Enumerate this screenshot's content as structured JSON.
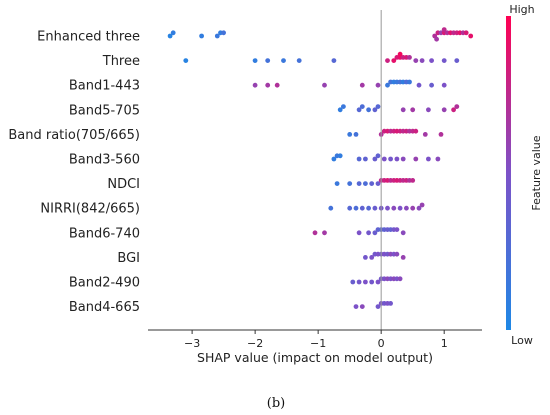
{
  "chart_data": {
    "type": "scatter",
    "subtype": "shap-beeswarm",
    "xlabel": "SHAP value (impact on model output)",
    "xlim": [
      -3.7,
      1.6
    ],
    "xticks": [
      -3,
      -2,
      -1,
      0,
      1
    ],
    "xtick_labels": [
      "−3",
      "−2",
      "−1",
      "0",
      "1"
    ],
    "colorbar": {
      "label": "Feature value",
      "high_label": "High",
      "low_label": "Low",
      "low_color": "#1e88e5",
      "high_color": "#ff0052"
    },
    "features": [
      {
        "name": "Enhanced three",
        "points": [
          {
            "x": -3.35,
            "v": 0.05
          },
          {
            "x": -3.3,
            "v": 0.1
          },
          {
            "x": -2.85,
            "v": 0.1
          },
          {
            "x": -2.6,
            "v": 0.15
          },
          {
            "x": -2.55,
            "v": 0.1
          },
          {
            "x": -2.5,
            "v": 0.2
          },
          {
            "x": 0.85,
            "v": 0.7
          },
          {
            "x": 0.9,
            "v": 0.8
          },
          {
            "x": 0.95,
            "v": 0.6
          },
          {
            "x": 1.0,
            "v": 0.85
          },
          {
            "x": 1.05,
            "v": 0.7
          },
          {
            "x": 1.1,
            "v": 0.9
          },
          {
            "x": 1.15,
            "v": 0.75
          },
          {
            "x": 1.2,
            "v": 0.8
          },
          {
            "x": 1.25,
            "v": 0.9
          },
          {
            "x": 1.3,
            "v": 0.7
          },
          {
            "x": 1.35,
            "v": 0.85
          },
          {
            "x": 1.42,
            "v": 0.9
          },
          {
            "x": 0.88,
            "v": 0.65
          },
          {
            "x": 1.0,
            "v": 0.75
          }
        ]
      },
      {
        "name": "Three",
        "points": [
          {
            "x": -3.1,
            "v": 0.05
          },
          {
            "x": -2.0,
            "v": 0.1
          },
          {
            "x": -1.8,
            "v": 0.2
          },
          {
            "x": -1.55,
            "v": 0.15
          },
          {
            "x": -1.3,
            "v": 0.2
          },
          {
            "x": -0.75,
            "v": 0.3
          },
          {
            "x": 0.1,
            "v": 0.8
          },
          {
            "x": 0.2,
            "v": 0.9
          },
          {
            "x": 0.25,
            "v": 0.85
          },
          {
            "x": 0.3,
            "v": 0.9
          },
          {
            "x": 0.35,
            "v": 0.8
          },
          {
            "x": 0.4,
            "v": 0.85
          },
          {
            "x": 0.45,
            "v": 0.7
          },
          {
            "x": 0.55,
            "v": 0.6
          },
          {
            "x": 0.65,
            "v": 0.55
          },
          {
            "x": 0.8,
            "v": 0.5
          },
          {
            "x": 1.0,
            "v": 0.45
          },
          {
            "x": 1.2,
            "v": 0.4
          },
          {
            "x": 0.3,
            "v": 0.95
          }
        ]
      },
      {
        "name": "Band1-443",
        "points": [
          {
            "x": -2.0,
            "v": 0.6
          },
          {
            "x": -1.8,
            "v": 0.65
          },
          {
            "x": -1.65,
            "v": 0.7
          },
          {
            "x": -0.9,
            "v": 0.6
          },
          {
            "x": -0.3,
            "v": 0.65
          },
          {
            "x": -0.05,
            "v": 0.6
          },
          {
            "x": 0.1,
            "v": 0.15
          },
          {
            "x": 0.15,
            "v": 0.2
          },
          {
            "x": 0.2,
            "v": 0.1
          },
          {
            "x": 0.25,
            "v": 0.15
          },
          {
            "x": 0.3,
            "v": 0.2
          },
          {
            "x": 0.35,
            "v": 0.1
          },
          {
            "x": 0.4,
            "v": 0.25
          },
          {
            "x": 0.45,
            "v": 0.15
          },
          {
            "x": 0.6,
            "v": 0.45
          },
          {
            "x": 0.8,
            "v": 0.4
          },
          {
            "x": 1.0,
            "v": 0.5
          }
        ]
      },
      {
        "name": "Band5-705",
        "points": [
          {
            "x": -0.65,
            "v": 0.1
          },
          {
            "x": -0.6,
            "v": 0.15
          },
          {
            "x": -0.35,
            "v": 0.3
          },
          {
            "x": -0.3,
            "v": 0.25
          },
          {
            "x": -0.2,
            "v": 0.2
          },
          {
            "x": -0.1,
            "v": 0.35
          },
          {
            "x": -0.05,
            "v": 0.3
          },
          {
            "x": 0.35,
            "v": 0.6
          },
          {
            "x": 0.5,
            "v": 0.65
          },
          {
            "x": 0.75,
            "v": 0.55
          },
          {
            "x": 1.0,
            "v": 0.6
          },
          {
            "x": 1.15,
            "v": 0.8
          },
          {
            "x": 1.2,
            "v": 0.7
          }
        ]
      },
      {
        "name": "Band ratio(705/665)",
        "points": [
          {
            "x": -0.5,
            "v": 0.15
          },
          {
            "x": -0.4,
            "v": 0.2
          },
          {
            "x": 0.0,
            "v": 0.7
          },
          {
            "x": 0.05,
            "v": 0.8
          },
          {
            "x": 0.1,
            "v": 0.85
          },
          {
            "x": 0.15,
            "v": 0.75
          },
          {
            "x": 0.2,
            "v": 0.8
          },
          {
            "x": 0.25,
            "v": 0.85
          },
          {
            "x": 0.3,
            "v": 0.8
          },
          {
            "x": 0.35,
            "v": 0.75
          },
          {
            "x": 0.4,
            "v": 0.8
          },
          {
            "x": 0.45,
            "v": 0.7
          },
          {
            "x": 0.5,
            "v": 0.75
          },
          {
            "x": 0.55,
            "v": 0.8
          },
          {
            "x": 0.7,
            "v": 0.65
          },
          {
            "x": 0.95,
            "v": 0.7
          }
        ]
      },
      {
        "name": "Band3-560",
        "points": [
          {
            "x": -0.75,
            "v": 0.1
          },
          {
            "x": -0.7,
            "v": 0.15
          },
          {
            "x": -0.65,
            "v": 0.1
          },
          {
            "x": -0.35,
            "v": 0.3
          },
          {
            "x": -0.25,
            "v": 0.35
          },
          {
            "x": -0.1,
            "v": 0.4
          },
          {
            "x": -0.05,
            "v": 0.35
          },
          {
            "x": 0.05,
            "v": 0.5
          },
          {
            "x": 0.15,
            "v": 0.45
          },
          {
            "x": 0.25,
            "v": 0.5
          },
          {
            "x": 0.35,
            "v": 0.55
          },
          {
            "x": 0.55,
            "v": 0.6
          },
          {
            "x": 0.75,
            "v": 0.5
          },
          {
            "x": 0.9,
            "v": 0.55
          }
        ]
      },
      {
        "name": "NDCI",
        "points": [
          {
            "x": -0.7,
            "v": 0.15
          },
          {
            "x": -0.5,
            "v": 0.2
          },
          {
            "x": -0.35,
            "v": 0.3
          },
          {
            "x": -0.25,
            "v": 0.25
          },
          {
            "x": -0.15,
            "v": 0.35
          },
          {
            "x": -0.05,
            "v": 0.4
          },
          {
            "x": 0.0,
            "v": 0.75
          },
          {
            "x": 0.05,
            "v": 0.8
          },
          {
            "x": 0.1,
            "v": 0.85
          },
          {
            "x": 0.15,
            "v": 0.75
          },
          {
            "x": 0.2,
            "v": 0.8
          },
          {
            "x": 0.25,
            "v": 0.85
          },
          {
            "x": 0.3,
            "v": 0.8
          },
          {
            "x": 0.35,
            "v": 0.75
          },
          {
            "x": 0.4,
            "v": 0.8
          },
          {
            "x": 0.45,
            "v": 0.7
          },
          {
            "x": 0.5,
            "v": 0.75
          }
        ]
      },
      {
        "name": "NIRRI(842/665)",
        "points": [
          {
            "x": -0.8,
            "v": 0.2
          },
          {
            "x": -0.5,
            "v": 0.3
          },
          {
            "x": -0.4,
            "v": 0.25
          },
          {
            "x": -0.3,
            "v": 0.35
          },
          {
            "x": -0.2,
            "v": 0.3
          },
          {
            "x": -0.1,
            "v": 0.4
          },
          {
            "x": 0.0,
            "v": 0.45
          },
          {
            "x": 0.1,
            "v": 0.5
          },
          {
            "x": 0.2,
            "v": 0.55
          },
          {
            "x": 0.3,
            "v": 0.5
          },
          {
            "x": 0.4,
            "v": 0.55
          },
          {
            "x": 0.5,
            "v": 0.6
          },
          {
            "x": 0.6,
            "v": 0.55
          },
          {
            "x": 0.65,
            "v": 0.6
          }
        ]
      },
      {
        "name": "Band6-740",
        "points": [
          {
            "x": -1.05,
            "v": 0.7
          },
          {
            "x": -0.9,
            "v": 0.65
          },
          {
            "x": -0.35,
            "v": 0.5
          },
          {
            "x": -0.2,
            "v": 0.45
          },
          {
            "x": -0.1,
            "v": 0.4
          },
          {
            "x": -0.05,
            "v": 0.35
          },
          {
            "x": 0.0,
            "v": 0.3
          },
          {
            "x": 0.05,
            "v": 0.35
          },
          {
            "x": 0.1,
            "v": 0.4
          },
          {
            "x": 0.15,
            "v": 0.35
          },
          {
            "x": 0.2,
            "v": 0.45
          },
          {
            "x": 0.25,
            "v": 0.5
          },
          {
            "x": 0.35,
            "v": 0.55
          }
        ]
      },
      {
        "name": "BGI",
        "points": [
          {
            "x": -0.25,
            "v": 0.45
          },
          {
            "x": -0.15,
            "v": 0.5
          },
          {
            "x": -0.1,
            "v": 0.45
          },
          {
            "x": -0.05,
            "v": 0.5
          },
          {
            "x": 0.0,
            "v": 0.45
          },
          {
            "x": 0.05,
            "v": 0.5
          },
          {
            "x": 0.1,
            "v": 0.45
          },
          {
            "x": 0.15,
            "v": 0.55
          },
          {
            "x": 0.2,
            "v": 0.5
          },
          {
            "x": 0.25,
            "v": 0.55
          },
          {
            "x": 0.35,
            "v": 0.6
          }
        ]
      },
      {
        "name": "Band2-490",
        "points": [
          {
            "x": -0.45,
            "v": 0.4
          },
          {
            "x": -0.35,
            "v": 0.45
          },
          {
            "x": -0.25,
            "v": 0.5
          },
          {
            "x": -0.15,
            "v": 0.45
          },
          {
            "x": -0.05,
            "v": 0.5
          },
          {
            "x": 0.0,
            "v": 0.45
          },
          {
            "x": 0.05,
            "v": 0.5
          },
          {
            "x": 0.1,
            "v": 0.55
          },
          {
            "x": 0.15,
            "v": 0.5
          },
          {
            "x": 0.2,
            "v": 0.55
          },
          {
            "x": 0.25,
            "v": 0.5
          },
          {
            "x": 0.3,
            "v": 0.55
          }
        ]
      },
      {
        "name": "Band4-665",
        "points": [
          {
            "x": -0.4,
            "v": 0.5
          },
          {
            "x": -0.3,
            "v": 0.55
          },
          {
            "x": -0.05,
            "v": 0.45
          },
          {
            "x": 0.0,
            "v": 0.5
          },
          {
            "x": 0.05,
            "v": 0.45
          },
          {
            "x": 0.1,
            "v": 0.5
          },
          {
            "x": 0.15,
            "v": 0.45
          }
        ]
      }
    ]
  },
  "caption": "(b)"
}
